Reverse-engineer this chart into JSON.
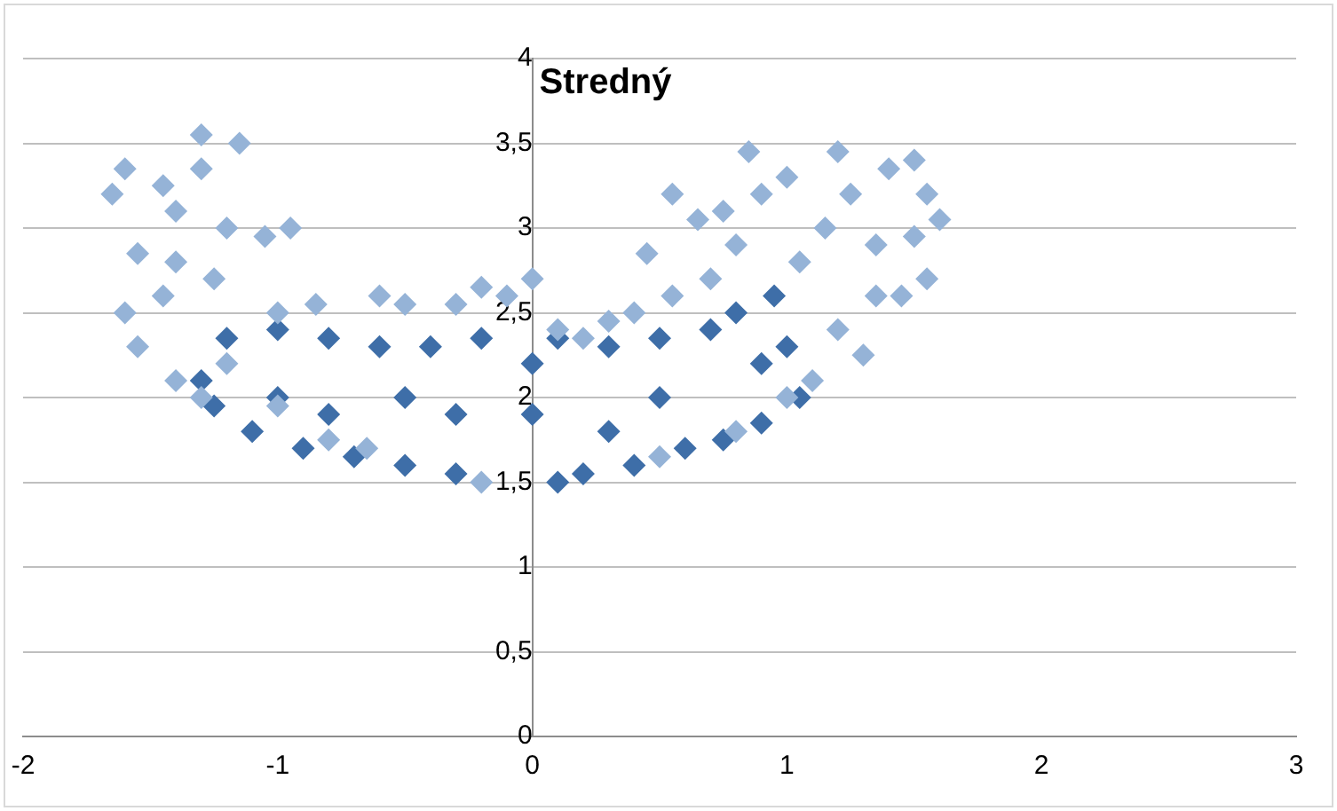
{
  "chart_data": {
    "type": "scatter",
    "title": "Stredný",
    "marker": "diamond",
    "grid": "y",
    "legend": false,
    "xlim": [
      -2,
      3
    ],
    "xticks": [
      -2,
      -1,
      0,
      1,
      2,
      3
    ],
    "ylim": [
      0,
      4
    ],
    "yticks": [
      0,
      {
        "value": 0.5,
        "label": "0,5"
      },
      1,
      {
        "value": 1.5,
        "label": "1,5"
      },
      2,
      {
        "value": 2.5,
        "label": "2,5"
      },
      3,
      {
        "value": 3.5,
        "label": "3,5"
      },
      4
    ],
    "series": [
      {
        "color": "#95b3d7",
        "x": [
          -1.6,
          -1.65,
          -1.55,
          -1.6,
          -1.55,
          -1.45,
          -1.4,
          -1.45,
          -1.4,
          -1.3,
          -1.3,
          -1.2,
          -1.15,
          -1.25,
          -1.2,
          -1.05,
          -0.95,
          -1.0,
          -1.0,
          -0.85,
          -0.8,
          -0.6,
          -0.5,
          -0.65,
          -0.3,
          -0.2,
          -0.1,
          0,
          0.1,
          0.2,
          0.3,
          0.4,
          0.45,
          0.55,
          0.55,
          0.65,
          0.7,
          0.75,
          0.8,
          0.85,
          0.9,
          1.0,
          1.05,
          1.0,
          1.1,
          1.15,
          1.2,
          1.2,
          1.25,
          1.3,
          1.35,
          1.4,
          1.45,
          1.5,
          1.5,
          1.55,
          1.6,
          1.55,
          -1.3,
          -0.2,
          0.5,
          0.8,
          -1.4,
          1.35
        ],
        "values": [
          3.35,
          3.2,
          2.85,
          2.5,
          2.3,
          3.25,
          3.1,
          2.6,
          2.1,
          3.55,
          3.35,
          3.0,
          3.5,
          2.7,
          2.2,
          2.95,
          3.0,
          2.5,
          1.95,
          2.55,
          1.75,
          2.6,
          2.55,
          1.7,
          2.55,
          2.65,
          2.6,
          2.7,
          2.4,
          2.35,
          2.45,
          2.5,
          2.85,
          3.2,
          2.6,
          3.05,
          2.7,
          3.1,
          2.9,
          3.45,
          3.2,
          3.3,
          2.8,
          2.0,
          2.1,
          3.0,
          3.45,
          2.4,
          3.2,
          2.25,
          2.9,
          3.35,
          2.6,
          3.4,
          2.95,
          3.2,
          3.05,
          2.7,
          2.0,
          1.5,
          1.65,
          1.8,
          2.8,
          2.6
        ]
      },
      {
        "color": "#3e6ea8",
        "x": [
          -1.3,
          -1.25,
          -1.2,
          -1.1,
          -1.0,
          -0.9,
          -0.8,
          -0.7,
          -0.6,
          -0.5,
          -0.4,
          -0.3,
          -0.2,
          0,
          0.1,
          0.1,
          0.2,
          0.3,
          0.4,
          0.5,
          0.6,
          0.7,
          0.75,
          0.8,
          0.9,
          0.95,
          1.0,
          1.05,
          -1.0,
          -0.5,
          0,
          0.5,
          0.9,
          -0.8,
          0.3,
          -0.3
        ],
        "values": [
          2.1,
          1.95,
          2.35,
          1.8,
          2.4,
          1.7,
          2.35,
          1.65,
          2.3,
          1.6,
          2.3,
          1.55,
          2.35,
          2.2,
          1.5,
          2.35,
          1.55,
          2.3,
          1.6,
          2.35,
          1.7,
          2.4,
          1.75,
          2.5,
          1.85,
          2.6,
          2.3,
          2.0,
          2.0,
          2.0,
          1.9,
          2.0,
          2.2,
          1.9,
          1.8,
          1.9
        ]
      }
    ]
  }
}
